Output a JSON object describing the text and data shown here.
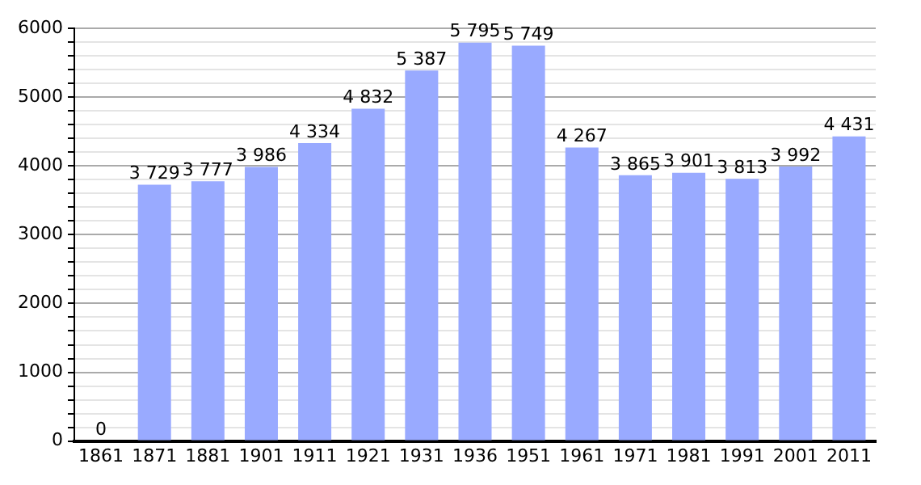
{
  "chart_data": {
    "type": "bar",
    "categories": [
      "1861",
      "1871",
      "1881",
      "1901",
      "1911",
      "1921",
      "1931",
      "1936",
      "1951",
      "1961",
      "1971",
      "1981",
      "1991",
      "2001",
      "2011"
    ],
    "values": [
      0,
      3729,
      3777,
      3986,
      4334,
      4832,
      5387,
      5795,
      5749,
      4267,
      3865,
      3901,
      3813,
      3992,
      4431
    ],
    "value_labels": [
      "0",
      "3 729",
      "3 777",
      "3 986",
      "4 334",
      "4 832",
      "5 387",
      "5 795",
      "5 749",
      "4 267",
      "3 865",
      "3 901",
      "3 813",
      "3 992",
      "4 431"
    ],
    "color": "#99aaff",
    "ylim": [
      0,
      6000
    ],
    "yticks": [
      0,
      {
        "value": 200,
        "label": null
      },
      {
        "value": 400,
        "label": null
      },
      {
        "value": 600,
        "label": null
      },
      {
        "value": 800,
        "label": null
      },
      1000,
      {
        "value": 1200,
        "label": null
      },
      {
        "value": 1400,
        "label": null
      },
      {
        "value": 1600,
        "label": null
      },
      {
        "value": 1800,
        "label": null
      },
      2000,
      {
        "value": 2200,
        "label": null
      },
      {
        "value": 2400,
        "label": null
      },
      {
        "value": 2600,
        "label": null
      },
      {
        "value": 2800,
        "label": null
      },
      3000,
      {
        "value": 3200,
        "label": null
      },
      {
        "value": 3400,
        "label": null
      },
      {
        "value": 3600,
        "label": null
      },
      {
        "value": 3800,
        "label": null
      },
      4000,
      {
        "value": 4200,
        "label": null
      },
      {
        "value": 4400,
        "label": null
      },
      {
        "value": 4600,
        "label": null
      },
      {
        "value": 4800,
        "label": null
      },
      5000,
      {
        "value": 5200,
        "label": null
      },
      {
        "value": 5400,
        "label": null
      },
      {
        "value": 5600,
        "label": null
      },
      {
        "value": 5800,
        "label": null
      },
      6000
    ],
    "grid": "y",
    "legend": false
  }
}
